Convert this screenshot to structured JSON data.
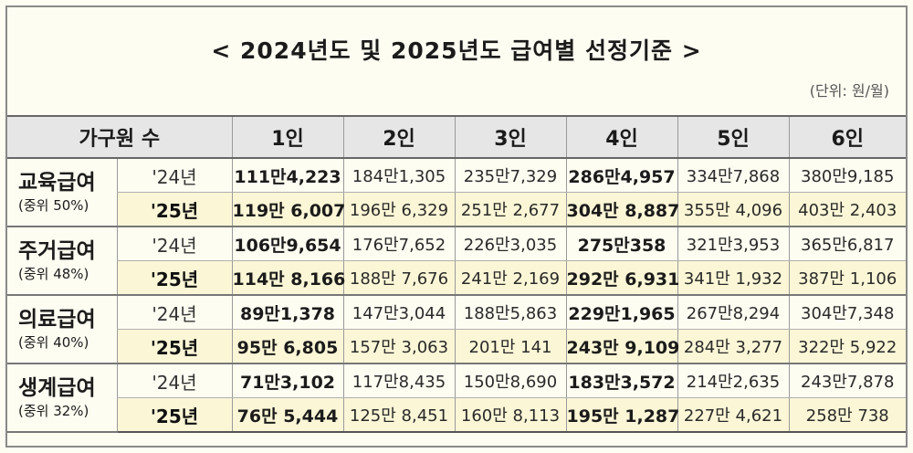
{
  "title": "< 2024년도 및 2025년도 급여별 선정기준 >",
  "unit": "(단위: 원/월)",
  "header": {
    "group_label": "가구원 수",
    "columns": [
      "1인",
      "2인",
      "3인",
      "4인",
      "5인",
      "6인"
    ]
  },
  "groups": [
    {
      "name": "교육급여",
      "sub": "(중위 50%)",
      "rows": [
        {
          "year": "'24년",
          "values": [
            "111만4,223",
            "184만1,305",
            "235만7,329",
            "286만4,957",
            "334만7,868",
            "380만9,185"
          ]
        },
        {
          "year": "'25년",
          "values": [
            "119만 6,007",
            "196만 6,329",
            "251만 2,677",
            "304만 8,887",
            "355만 4,096",
            "403만 2,403"
          ]
        }
      ]
    },
    {
      "name": "주거급여",
      "sub": "(중위 48%)",
      "rows": [
        {
          "year": "'24년",
          "values": [
            "106만9,654",
            "176만7,652",
            "226만3,035",
            "275만358",
            "321만3,953",
            "365만6,817"
          ]
        },
        {
          "year": "'25년",
          "values": [
            "114만 8,166",
            "188만 7,676",
            "241만 2,169",
            "292만 6,931",
            "341만 1,932",
            "387만 1,106"
          ]
        }
      ]
    },
    {
      "name": "의료급여",
      "sub": "(중위 40%)",
      "rows": [
        {
          "year": "'24년",
          "values": [
            "89만1,378",
            "147만3,044",
            "188만5,863",
            "229만1,965",
            "267만8,294",
            "304만7,348"
          ]
        },
        {
          "year": "'25년",
          "values": [
            "95만 6,805",
            "157만 3,063",
            "201만 141",
            "243만 9,109",
            "284만 3,277",
            "322만 5,922"
          ]
        }
      ]
    },
    {
      "name": "생계급여",
      "sub": "(중위 32%)",
      "rows": [
        {
          "year": "'24년",
          "values": [
            "71만3,102",
            "117만8,435",
            "150만8,690",
            "183만3,572",
            "214만2,635",
            "243만7,878"
          ]
        },
        {
          "year": "'25년",
          "values": [
            "76만 5,444",
            "125만 8,451",
            "160만 8,113",
            "195만 1,287",
            "227만 4,621",
            "258만 738"
          ]
        }
      ]
    }
  ]
}
